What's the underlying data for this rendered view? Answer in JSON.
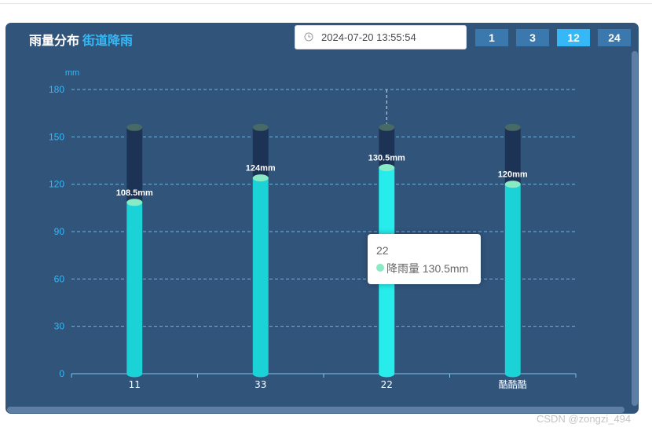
{
  "header": {
    "title": "雨量分布",
    "subtitle": "街道降雨",
    "datetime": "2024-07-20 13:55:54",
    "clock_icon": "clock-icon",
    "range_buttons": [
      "1",
      "3",
      "12",
      "24"
    ],
    "active_range": "12"
  },
  "tooltip": {
    "category": "22",
    "series_name": "降雨量",
    "value_text": "130.5mm"
  },
  "watermark": "CSDN @zongzi_494",
  "colors": {
    "panel_bg": "#31547b",
    "bar": "#1bd2d6",
    "bar_highlight": "#27eceb",
    "bar_top": "#88ebc5",
    "bar_background": "#1d3355",
    "background_cap": "#476a66",
    "axis_text": "#35b8f5",
    "grid": "#7fc4ef",
    "accent": "#35b8f5"
  },
  "chart_data": {
    "type": "bar",
    "categories": [
      "11",
      "33",
      "22",
      "酷酷酷"
    ],
    "series": [
      {
        "name": "降雨量",
        "values": [
          108.5,
          124,
          130.5,
          120
        ],
        "labels": [
          "108.5mm",
          "124mm",
          "130.5mm",
          "120mm"
        ]
      }
    ],
    "background_max": 156,
    "ylabel": "mm",
    "ylim": [
      0,
      180
    ],
    "yticks": [
      0,
      30,
      60,
      90,
      120,
      150,
      180
    ],
    "grid": true,
    "highlighted_category": "22"
  }
}
